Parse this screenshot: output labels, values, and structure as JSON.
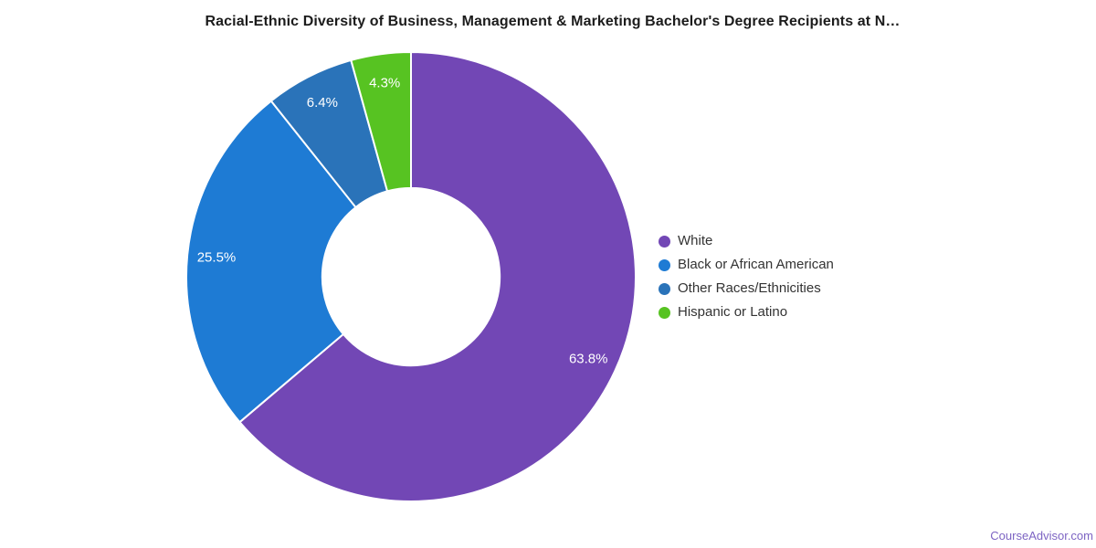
{
  "page": {
    "background": "#ffffff",
    "watermark": "CourseAdvisor.com",
    "watermark_color": "#7d64c3"
  },
  "chart_data": {
    "type": "pie",
    "subtype": "donut",
    "title": "Racial-Ethnic Diversity of Business, Management & Marketing Bachelor's Degree Recipients at N…",
    "title_color": "#1c1c1c",
    "categories": [
      "White",
      "Black or African American",
      "Other Races/Ethnicities",
      "Hispanic or Latino"
    ],
    "values": [
      63.8,
      25.5,
      6.4,
      4.3
    ],
    "slices": [
      {
        "label": "White",
        "value": 63.8,
        "display": "63.8%",
        "color": "#7247b5"
      },
      {
        "label": "Black or African American",
        "value": 25.5,
        "display": "25.5%",
        "color": "#1e7bd4"
      },
      {
        "label": "Other Races/Ethnicities",
        "value": 6.4,
        "display": "6.4%",
        "color": "#2a73b9"
      },
      {
        "label": "Hispanic or Latino",
        "value": 4.3,
        "display": "4.3%",
        "color": "#57c322"
      }
    ],
    "total": 100,
    "start_angle_deg": 0,
    "direction": "clockwise",
    "donut_hole_ratio": 0.395,
    "slice_border_color": "#ffffff",
    "data_label_color": "#ffffff",
    "legend_position": "right",
    "legend_text_color": "#333333"
  }
}
